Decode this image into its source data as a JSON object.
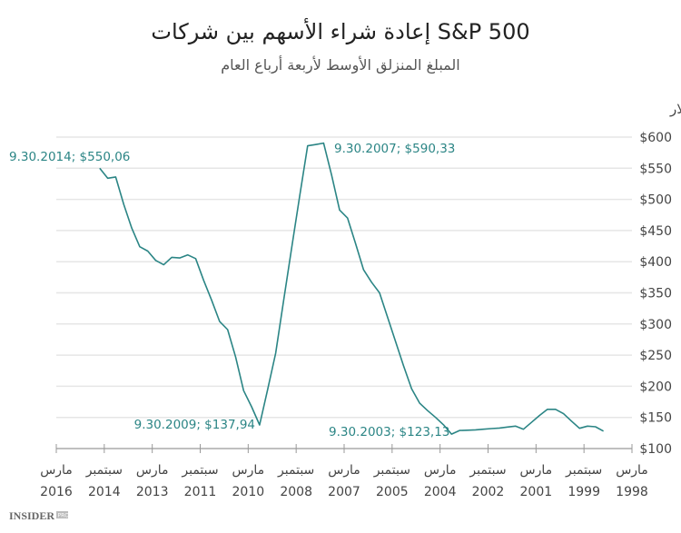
{
  "chart_data": {
    "type": "line",
    "title": "إعادة شراء الأسهم بين شركات S&P 500",
    "subtitle": "المبلغ المنزلق الأوسط لأربعة أرباع العام",
    "ylabel": "مليارات الدولارات دولار",
    "xlabel": "",
    "ylim": [
      100,
      600
    ],
    "xlim": [
      "2016-03",
      "1998-03"
    ],
    "x_reversed": true,
    "grid": true,
    "line_color": "#2b8585",
    "y_ticks": [
      "$100",
      "$150",
      "$200",
      "$250",
      "$300",
      "$350",
      "$400",
      "$450",
      "$500",
      "$550",
      "$600"
    ],
    "y_tick_values": [
      100,
      150,
      200,
      250,
      300,
      350,
      400,
      450,
      500,
      550,
      600
    ],
    "x_ticks": [
      {
        "date": "2016-03",
        "month": "مارس",
        "year": "2016"
      },
      {
        "date": "2014-09",
        "month": "سبتمبر",
        "year": "2014"
      },
      {
        "date": "2013-03",
        "month": "مارس",
        "year": "2013"
      },
      {
        "date": "2011-09",
        "month": "سبتمبر",
        "year": "2011"
      },
      {
        "date": "2010-03",
        "month": "مارس",
        "year": "2010"
      },
      {
        "date": "2008-09",
        "month": "سبتمبر",
        "year": "2008"
      },
      {
        "date": "2007-03",
        "month": "مارس",
        "year": "2007"
      },
      {
        "date": "2005-09",
        "month": "سبتمبر",
        "year": "2005"
      },
      {
        "date": "2004-03",
        "month": "مارس",
        "year": "2004"
      },
      {
        "date": "2002-09",
        "month": "سبتمبر",
        "year": "2002"
      },
      {
        "date": "2001-03",
        "month": "مارس",
        "year": "2001"
      },
      {
        "date": "1999-09",
        "month": "سبتمبر",
        "year": "1999"
      },
      {
        "date": "1998-03",
        "month": "مارس",
        "year": "1998"
      }
    ],
    "series": [
      {
        "x": [
          "2014-09",
          "2014-06",
          "2014-03",
          "2013-12",
          "2013-09",
          "2013-06",
          "2013-03",
          "2012-12",
          "2012-09",
          "2012-06",
          "2012-03",
          "2011-12",
          "2011-09",
          "2011-06",
          "2011-03",
          "2010-12",
          "2010-09",
          "2010-06",
          "2010-03",
          "2009-12",
          "2009-09",
          "2009-06",
          "2009-03",
          "2008-12",
          "2008-09",
          "2008-06",
          "2008-03",
          "2007-12",
          "2007-09",
          "2007-06",
          "2007-03",
          "2006-12",
          "2006-09",
          "2006-06",
          "2006-03",
          "2005-12",
          "2005-09",
          "2005-06",
          "2005-03",
          "2004-12",
          "2004-09",
          "2004-06",
          "2004-03",
          "2003-12",
          "2003-09",
          "2003-06",
          "2003-03",
          "2002-12",
          "2002-09",
          "2002-06",
          "2002-03",
          "2001-12",
          "2001-09",
          "2001-06",
          "2001-03",
          "2000-12",
          "2000-09",
          "2000-06",
          "2000-03",
          "1999-12",
          "1999-09",
          "1999-06",
          "1999-03",
          "1998-12"
        ],
        "values": [
          550.06,
          534,
          536,
          492,
          454,
          424,
          417,
          402,
          395,
          407,
          406,
          411,
          405,
          370,
          338,
          304,
          291,
          247,
          193,
          167,
          137.94,
          195,
          253,
          338,
          422,
          505,
          586,
          588,
          590.33,
          539,
          483,
          470,
          429,
          387,
          367,
          350,
          311,
          272,
          233,
          196,
          173,
          161,
          150,
          138,
          123.13,
          129,
          129.5,
          130,
          131,
          132,
          133,
          134.5,
          136,
          131,
          142,
          153,
          163,
          163,
          156,
          144,
          132.5,
          136,
          135,
          128
        ]
      }
    ],
    "annotations": [
      {
        "text": "9.30.2014; $550,06"
      },
      {
        "text": "9.30.2007; $590,33"
      },
      {
        "text": "9.30.2009; $137,94"
      },
      {
        "text": "9.30.2003; $123,13"
      }
    ]
  },
  "logo": {
    "text": "INSIDER",
    "suffix": "PRO"
  }
}
